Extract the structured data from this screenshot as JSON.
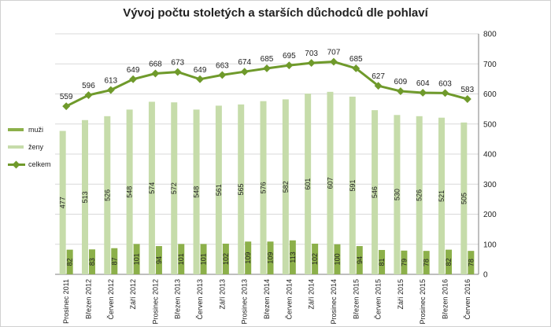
{
  "colors": {
    "muzi": "#8cb04a",
    "zeny": "#c6dcaa",
    "celkem": "#6f9a2b",
    "grid": "#d9d9d9",
    "axis": "#7f7f7f",
    "text": "#222222"
  },
  "chart_data": {
    "type": "bar",
    "title": "Vývoj počtu stoletých a starších důchodců dle pohlaví",
    "xlabel": "",
    "ylabel": "",
    "ylim": [
      0,
      800
    ],
    "yticks": [
      0,
      100,
      200,
      300,
      400,
      500,
      600,
      700,
      800
    ],
    "y_axis_position": "right",
    "grid": true,
    "legend": "left",
    "categories": [
      "Prosinec 2011",
      "Březen 2012",
      "Červen 2012",
      "Září 2012",
      "Prosinec 2012",
      "Březen 2013",
      "Červen 2013",
      "Září 2013",
      "Prosinec 2013",
      "Březen 2014",
      "Červen 2014",
      "Září 2014",
      "Prosinec 2014",
      "Březen 2015",
      "Červen 2015",
      "Září 2015",
      "Prosinec 2015",
      "Březen 2016",
      "Červen 2016"
    ],
    "series": [
      {
        "name": "muži",
        "type": "bar",
        "values": [
          82,
          83,
          87,
          101,
          94,
          101,
          101,
          102,
          109,
          109,
          113,
          102,
          100,
          94,
          81,
          79,
          78,
          82,
          78
        ]
      },
      {
        "name": "ženy",
        "type": "bar",
        "values": [
          477,
          513,
          526,
          548,
          574,
          572,
          548,
          561,
          565,
          576,
          582,
          601,
          607,
          591,
          546,
          530,
          526,
          521,
          505
        ]
      },
      {
        "name": "celkem",
        "type": "line",
        "values": [
          559,
          596,
          613,
          649,
          668,
          673,
          649,
          663,
          674,
          685,
          695,
          703,
          707,
          685,
          627,
          609,
          604,
          603,
          583
        ]
      }
    ]
  }
}
